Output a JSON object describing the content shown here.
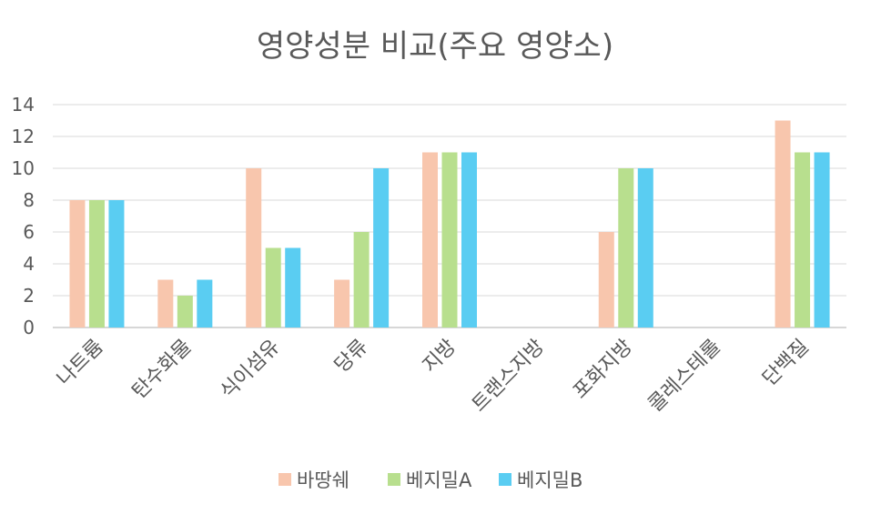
{
  "chart_data": {
    "type": "bar",
    "title": "영양성분 비교(주요 영양소)",
    "xlabel": "",
    "ylabel": "",
    "ylim": [
      0,
      14
    ],
    "yticks": [
      0,
      2,
      4,
      6,
      8,
      10,
      12,
      14
    ],
    "grid": true,
    "legend_position": "bottom",
    "categories": [
      "나트륨",
      "탄수화물",
      "식이섬유",
      "당류",
      "지방",
      "트랜스지방",
      "포화지방",
      "콜레스테롤",
      "단백질"
    ],
    "series": [
      {
        "name": "바땅쉐",
        "color": "#F8C6AD",
        "values": [
          8,
          3,
          10,
          3,
          11,
          0,
          6,
          0,
          13
        ]
      },
      {
        "name": "베지밀A",
        "color": "#B8DF8E",
        "values": [
          8,
          2,
          5,
          6,
          11,
          0,
          10,
          0,
          11
        ]
      },
      {
        "name": "베지밀B",
        "color": "#5ACDF2",
        "values": [
          8,
          3,
          5,
          10,
          11,
          0,
          10,
          0,
          11
        ]
      }
    ]
  }
}
